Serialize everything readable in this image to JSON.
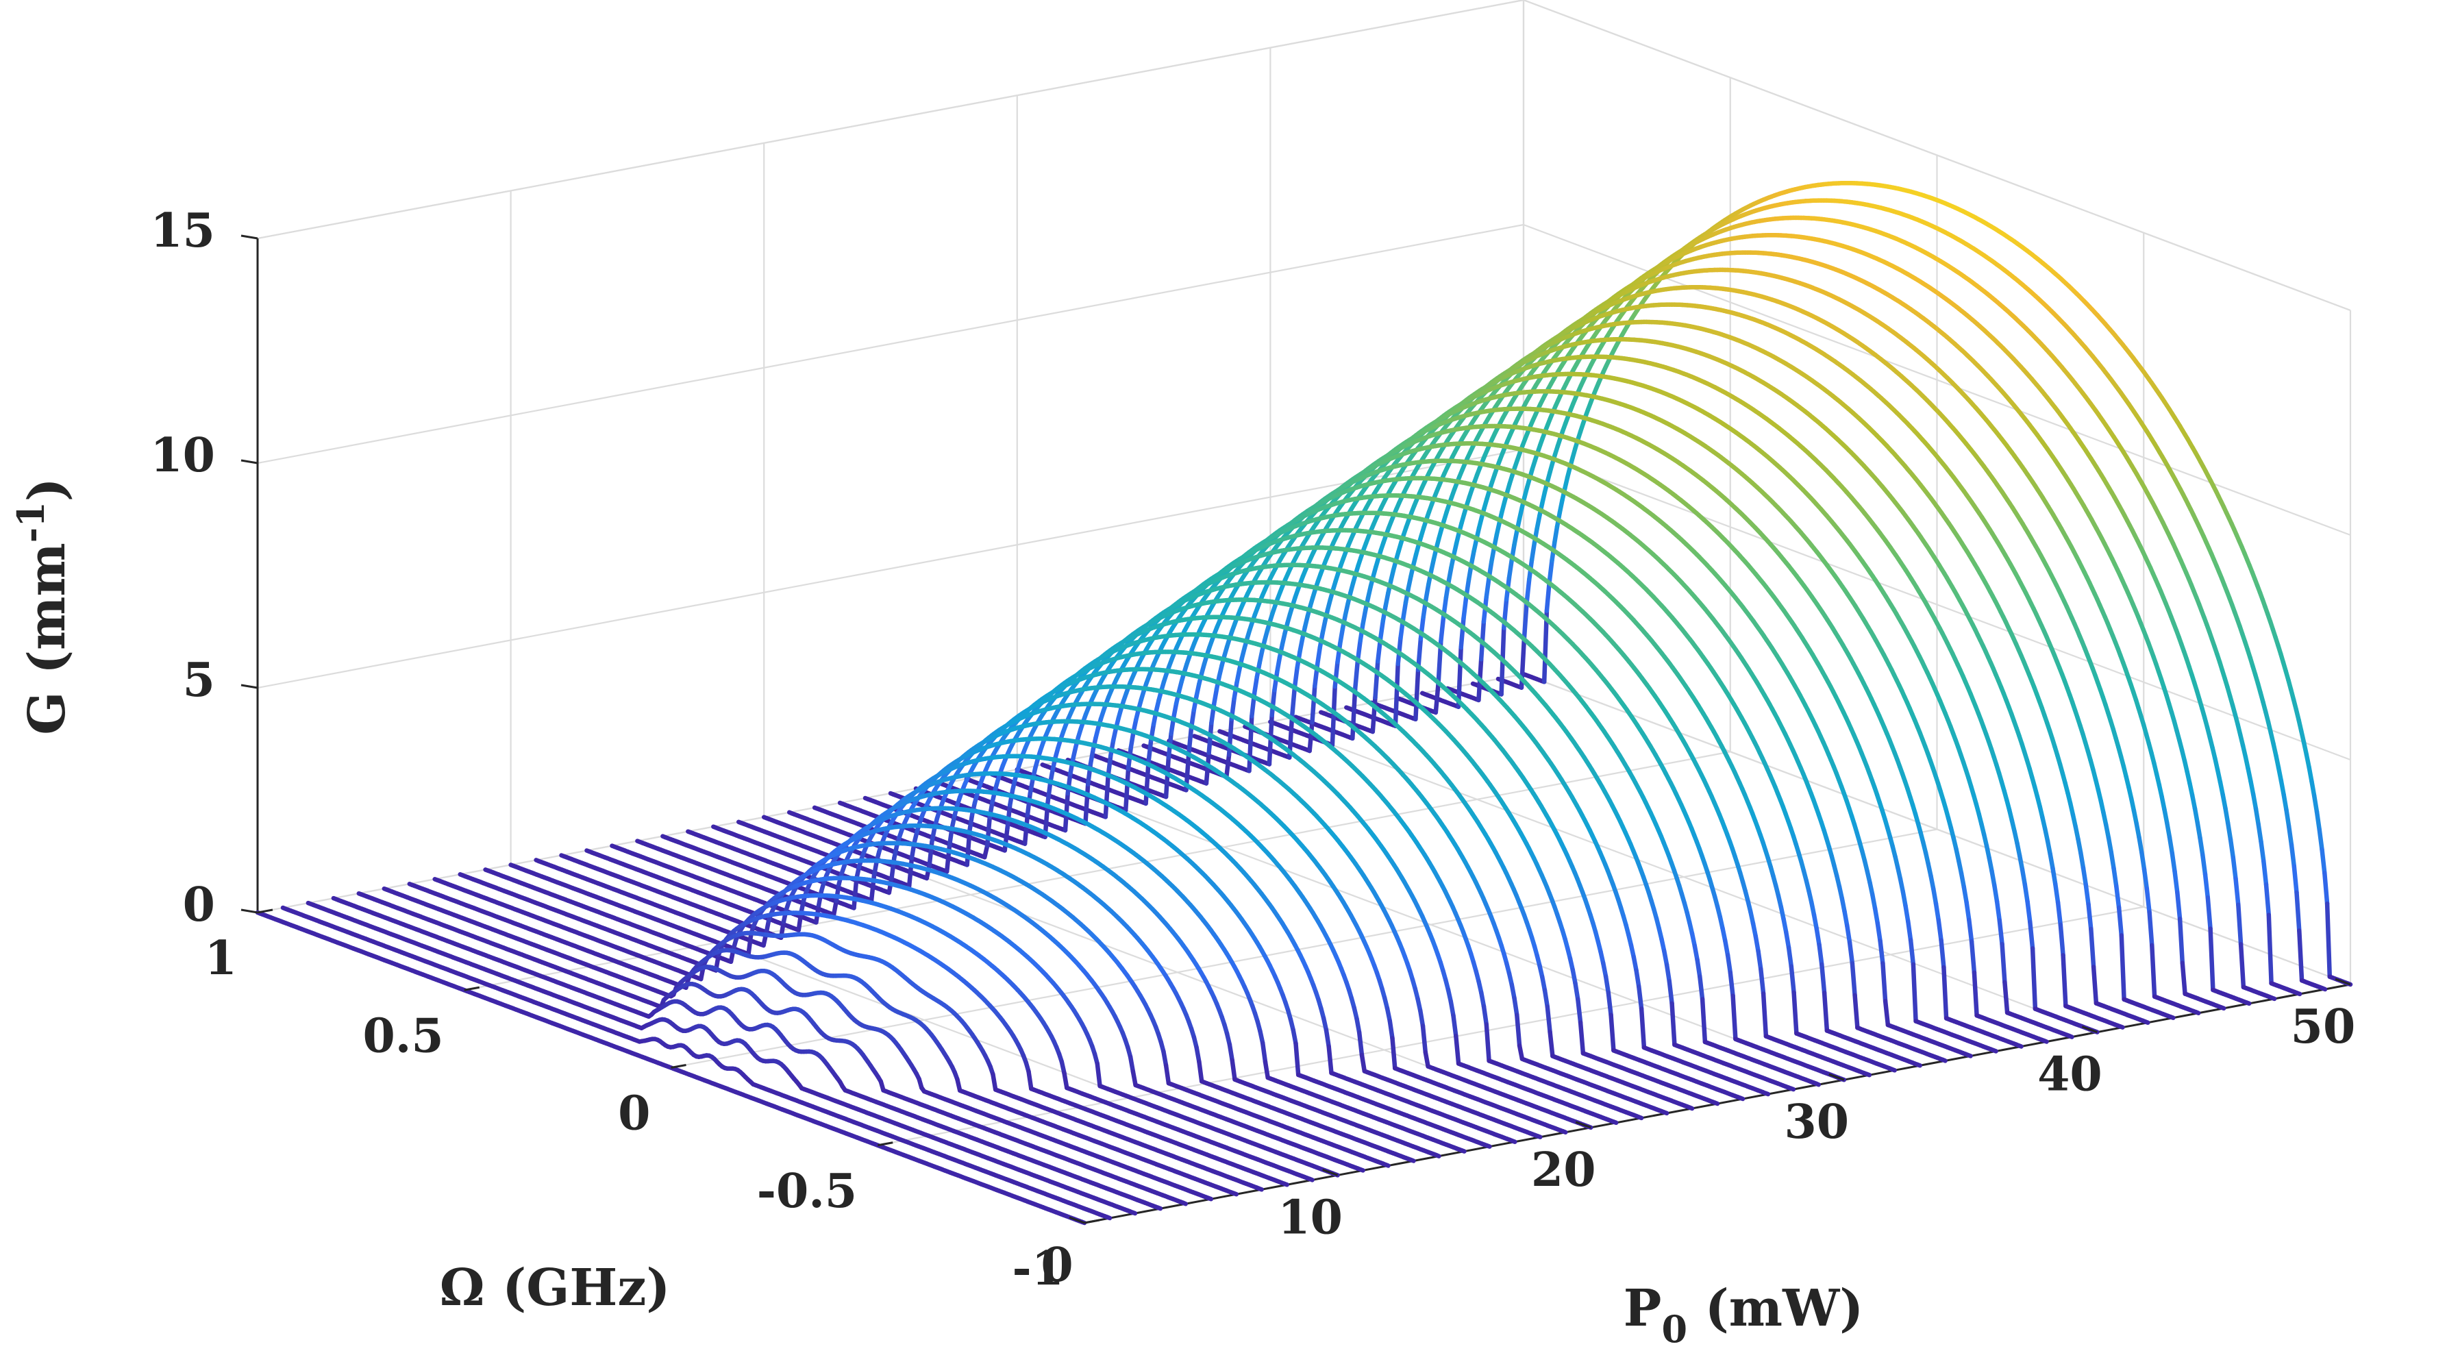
{
  "chart_data": {
    "type": "3d-line-waterfall",
    "x_axis": {
      "label_main": "P",
      "label_sub": "0",
      "label_unit": " (mW)",
      "ticks": [
        0,
        10,
        20,
        30,
        40,
        50
      ],
      "range": [
        0,
        50
      ]
    },
    "y_axis": {
      "label": "Ω (GHz)",
      "ticks": [
        -1,
        -0.5,
        0,
        0.5,
        1
      ],
      "range": [
        -1,
        1
      ]
    },
    "z_axis": {
      "label_main": "G (mm",
      "label_sup": "-1",
      "label_close": ")",
      "ticks": [
        0,
        5,
        10,
        15
      ],
      "range": [
        0,
        15
      ]
    },
    "series": {
      "x_values": [
        0,
        1,
        2,
        3,
        4,
        5,
        6,
        7,
        8,
        9,
        10,
        11,
        12,
        13,
        14,
        15,
        16,
        17,
        18,
        19,
        20,
        21,
        22,
        23,
        24,
        25,
        26,
        27,
        28,
        29,
        30,
        31,
        32,
        33,
        34,
        35,
        36,
        37,
        38,
        39,
        40,
        41,
        42,
        43,
        44,
        45,
        46,
        47,
        48,
        49,
        50
      ],
      "gain_peak_per_mW": 0.28,
      "gain_band_edge_GHz_at_50mW": 0.95,
      "y_resolution": 321
    },
    "grid": true,
    "colormap": "parula",
    "colormap_stops": [
      "#3e26a8",
      "#2f6df0",
      "#12a2d6",
      "#24b4aa",
      "#5ebf74",
      "#b3bd31",
      "#f0ba2e",
      "#f9e51b"
    ]
  }
}
